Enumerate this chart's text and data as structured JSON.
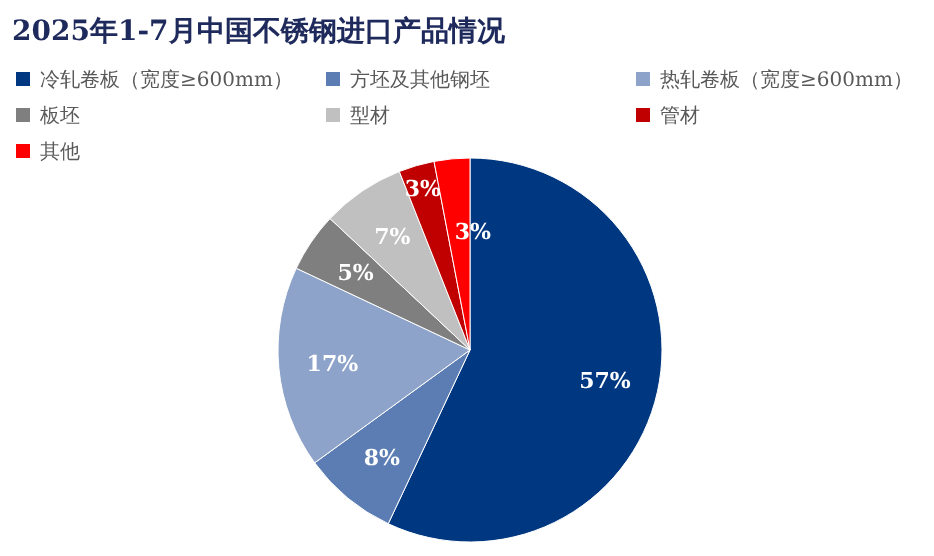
{
  "chart_data": {
    "type": "pie",
    "title": "2025年1-7月中国不锈钢进口产品情况",
    "categories": [
      "冷轧卷板（宽度≥600mm）",
      "方坯及其他钢坯",
      "热轧卷板（宽度≥600mm）",
      "板坯",
      "型材",
      "管材",
      "其他"
    ],
    "values": [
      57,
      8,
      17,
      5,
      7,
      3,
      3
    ],
    "colors": [
      "#003781",
      "#5b7db3",
      "#8da3c9",
      "#7f7f7f",
      "#c0c0c0",
      "#c00000",
      "#ff0000"
    ],
    "value_labels": [
      "57%",
      "8%",
      "17%",
      "5%",
      "7%",
      "3%",
      "3%"
    ],
    "legend": "top"
  }
}
